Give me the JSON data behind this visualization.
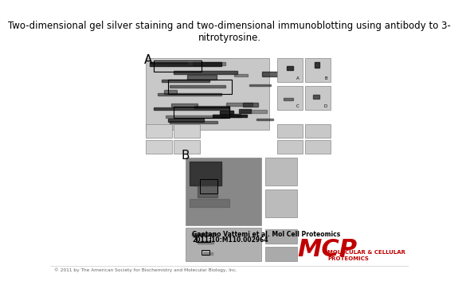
{
  "title": "Two-dimensional gel silver staining and two-dimensional immunoblotting using antibody to 3-\nnitrotyrosine.",
  "title_fontsize": 8.5,
  "label_A": "A",
  "label_B": "B",
  "citation_line1": "Gaetano Vattemi et al. Mol Cell Proteomics",
  "citation_line2": "2011;10:M110.002964",
  "copyright": "© 2011 by The American Society for Biochemistry and Molecular Biology, Inc.",
  "mcp_text": "MCP",
  "mcp_subtitle1": "MOLECULAR & CELLULAR",
  "mcp_subtitle2": "PROTEOMICS",
  "bg_color": "#ffffff",
  "title_color": "#000000",
  "mcp_color": "#c00000",
  "citation_color": "#000000",
  "copyright_color": "#666666"
}
